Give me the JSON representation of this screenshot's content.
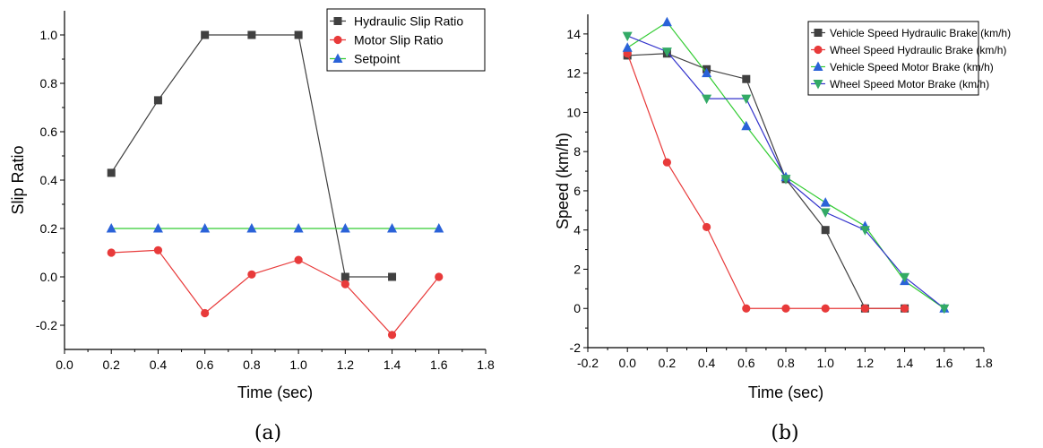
{
  "chart_data": [
    {
      "type": "line",
      "caption": "(a)",
      "xlabel": "Time (sec)",
      "ylabel": "Slip Ratio",
      "xlim": [
        0.0,
        1.8
      ],
      "ylim": [
        -0.3,
        1.1
      ],
      "xticks": [
        "0.0",
        "0.2",
        "0.4",
        "0.6",
        "0.8",
        "1.0",
        "1.2",
        "1.4",
        "1.6",
        "1.8"
      ],
      "yticks": [
        "-0.2",
        "0.0",
        "0.2",
        "0.4",
        "0.6",
        "0.8",
        "1.0"
      ],
      "legend_position": "top-right",
      "series": [
        {
          "name": "Hydraulic Slip Ratio",
          "color": "#404040",
          "line_color": "#404040",
          "marker": "square",
          "x": [
            0.2,
            0.4,
            0.6,
            0.8,
            1.0,
            1.2,
            1.4
          ],
          "y": [
            0.43,
            0.73,
            1.0,
            1.0,
            1.0,
            0.0,
            0.0
          ]
        },
        {
          "name": "Motor Slip Ratio",
          "color": "#e83a3a",
          "line_color": "#e83a3a",
          "marker": "circle",
          "x": [
            0.2,
            0.4,
            0.6,
            0.8,
            1.0,
            1.2,
            1.4,
            1.6
          ],
          "y": [
            0.1,
            0.11,
            -0.15,
            0.01,
            0.07,
            -0.03,
            -0.24,
            0.0
          ]
        },
        {
          "name": "Setpoint",
          "color": "#2a62d8",
          "line_color": "#33cc33",
          "marker": "triangle-up",
          "x": [
            0.2,
            0.4,
            0.6,
            0.8,
            1.0,
            1.2,
            1.4,
            1.6
          ],
          "y": [
            0.2,
            0.2,
            0.2,
            0.2,
            0.2,
            0.2,
            0.2,
            0.2
          ]
        }
      ]
    },
    {
      "type": "line",
      "caption": "(b)",
      "xlabel": "Time (sec)",
      "ylabel": "Speed (km/h)",
      "xlim": [
        -0.2,
        1.8
      ],
      "ylim": [
        -2,
        15
      ],
      "xticks": [
        "-0.2",
        "0.0",
        "0.2",
        "0.4",
        "0.6",
        "0.8",
        "1.0",
        "1.2",
        "1.4",
        "1.6",
        "1.8"
      ],
      "yticks": [
        "-2",
        "0",
        "2",
        "4",
        "6",
        "8",
        "10",
        "12",
        "14"
      ],
      "legend_position": "top-right",
      "series": [
        {
          "name": "Vehicle Speed Hydraulic Brake (km/h)",
          "color": "#404040",
          "line_color": "#404040",
          "marker": "square",
          "x": [
            0.0,
            0.2,
            0.4,
            0.6,
            0.8,
            1.0,
            1.2,
            1.4
          ],
          "y": [
            12.9,
            13.0,
            12.2,
            11.7,
            6.6,
            4.0,
            0.0,
            0.0
          ]
        },
        {
          "name": "Wheel Speed Hydraulic Brake (km/h)",
          "color": "#e83a3a",
          "line_color": "#e83a3a",
          "marker": "circle",
          "x": [
            0.0,
            0.2,
            0.4,
            0.6,
            0.8,
            1.0,
            1.2,
            1.4
          ],
          "y": [
            13.0,
            7.45,
            4.15,
            0.0,
            0.0,
            0.0,
            0.0,
            0.0
          ]
        },
        {
          "name": "Vehicle Speed Motor Brake (km/h)",
          "color": "#2a62d8",
          "line_color": "#33cc33",
          "marker": "triangle-up",
          "x": [
            0.0,
            0.2,
            0.4,
            0.6,
            0.8,
            1.0,
            1.2,
            1.4,
            1.6
          ],
          "y": [
            13.3,
            14.6,
            12.0,
            9.3,
            6.7,
            5.4,
            4.2,
            1.4,
            0.0
          ]
        },
        {
          "name": "Wheel Speed Motor Brake (km/h)",
          "color": "#33aa66",
          "line_color": "#3333cc",
          "marker": "triangle-down",
          "x": [
            0.0,
            0.2,
            0.4,
            0.6,
            0.8,
            1.0,
            1.2,
            1.4,
            1.6
          ],
          "y": [
            13.9,
            13.1,
            10.7,
            10.7,
            6.6,
            4.9,
            4.0,
            1.6,
            0.0
          ]
        }
      ]
    }
  ]
}
